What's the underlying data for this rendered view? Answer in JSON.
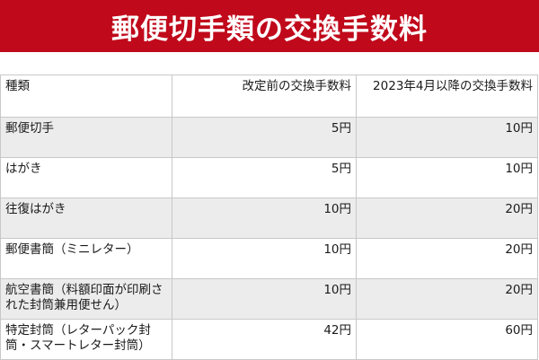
{
  "title": "郵便切手類の交換手数料",
  "colors": {
    "banner_background": "#c0091b",
    "banner_text": "#ffffff",
    "row_shade": "#ececec",
    "grid_line": "#c8c8c8"
  },
  "table": {
    "headers": [
      "種類",
      "改定前の交換手数料",
      "2023年4月以降の交換手数料"
    ],
    "rows": [
      {
        "type": "郵便切手",
        "before": "5円",
        "after": "10円"
      },
      {
        "type": "はがき",
        "before": "5円",
        "after": "10円"
      },
      {
        "type": "往復はがき",
        "before": "10円",
        "after": "20円"
      },
      {
        "type": "郵便書簡（ミニレター）",
        "before": "10円",
        "after": "20円"
      },
      {
        "type": "航空書簡（料額印面が印刷された封筒兼用便せん）",
        "before": "10円",
        "after": "20円"
      },
      {
        "type": "特定封筒（レターパック封筒・スマートレター封筒）",
        "before": "42円",
        "after": "60円"
      }
    ]
  }
}
